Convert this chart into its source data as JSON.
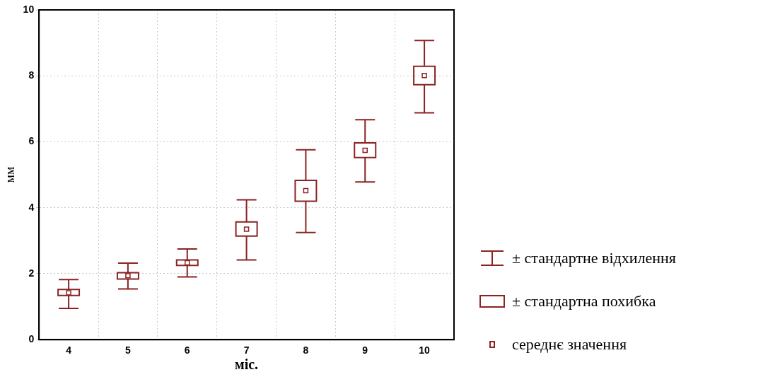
{
  "chart_data": {
    "type": "box",
    "xlabel": "міс.",
    "ylabel": "мм",
    "categories": [
      "4",
      "5",
      "6",
      "7",
      "8",
      "9",
      "10"
    ],
    "color": "#8b2323",
    "boxes": [
      {
        "low": 0.95,
        "q1": 1.34,
        "mean": 1.42,
        "q3": 1.52,
        "high": 1.82
      },
      {
        "low": 1.54,
        "q1": 1.84,
        "mean": 1.94,
        "q3": 2.03,
        "high": 2.32
      },
      {
        "low": 1.9,
        "q1": 2.25,
        "mean": 2.33,
        "q3": 2.42,
        "high": 2.75
      },
      {
        "low": 2.42,
        "q1": 3.14,
        "mean": 3.35,
        "q3": 3.57,
        "high": 4.24
      },
      {
        "low": 3.25,
        "q1": 4.2,
        "mean": 4.52,
        "q3": 4.83,
        "high": 5.76
      },
      {
        "low": 4.78,
        "q1": 5.52,
        "mean": 5.74,
        "q3": 5.97,
        "high": 6.67
      },
      {
        "low": 6.88,
        "q1": 7.73,
        "mean": 8.01,
        "q3": 8.29,
        "high": 9.07
      }
    ],
    "ylim": [
      0,
      10
    ],
    "yticks": [
      0,
      2,
      4,
      6,
      8,
      10
    ],
    "grid": true,
    "annotations": [
      "± стандартне відхилення",
      "± стандартна похибка",
      "середнє значення"
    ]
  }
}
